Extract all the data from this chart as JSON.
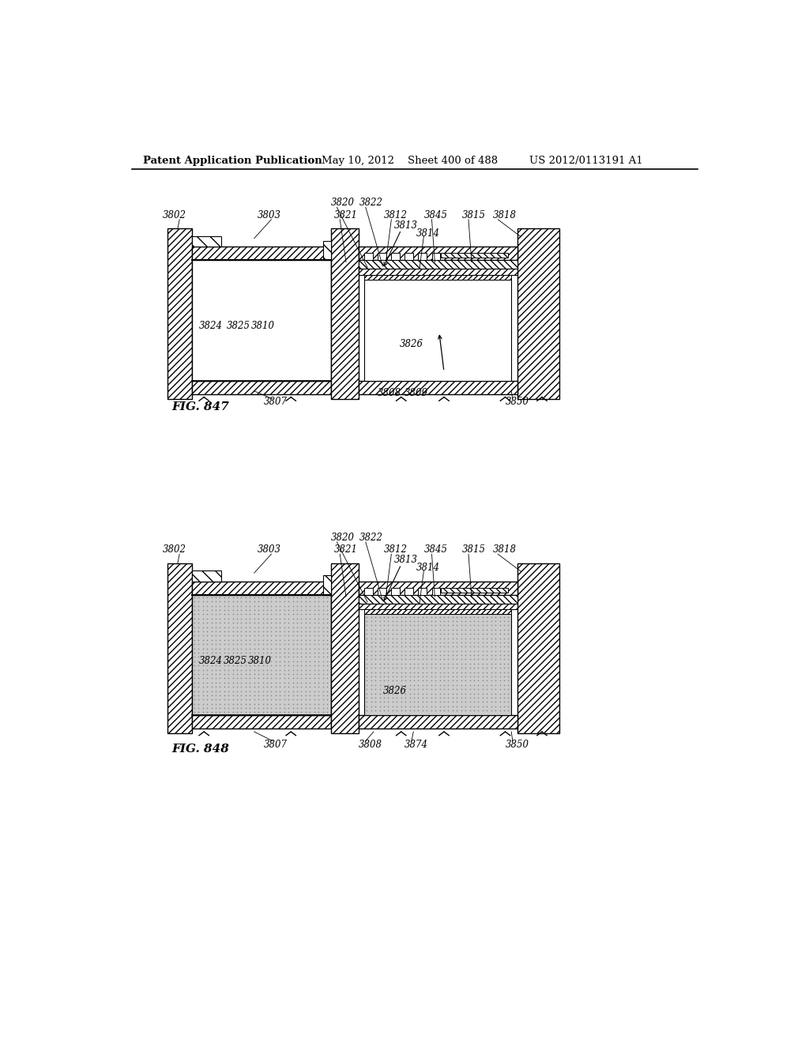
{
  "header_text": "Patent Application Publication",
  "header_date": "May 10, 2012",
  "header_sheet": "Sheet 400 of 488",
  "header_patent": "US 2012/0113191 A1",
  "fig847_label": "FIG. 847",
  "fig848_label": "FIG. 848",
  "bg_color": "#ffffff"
}
